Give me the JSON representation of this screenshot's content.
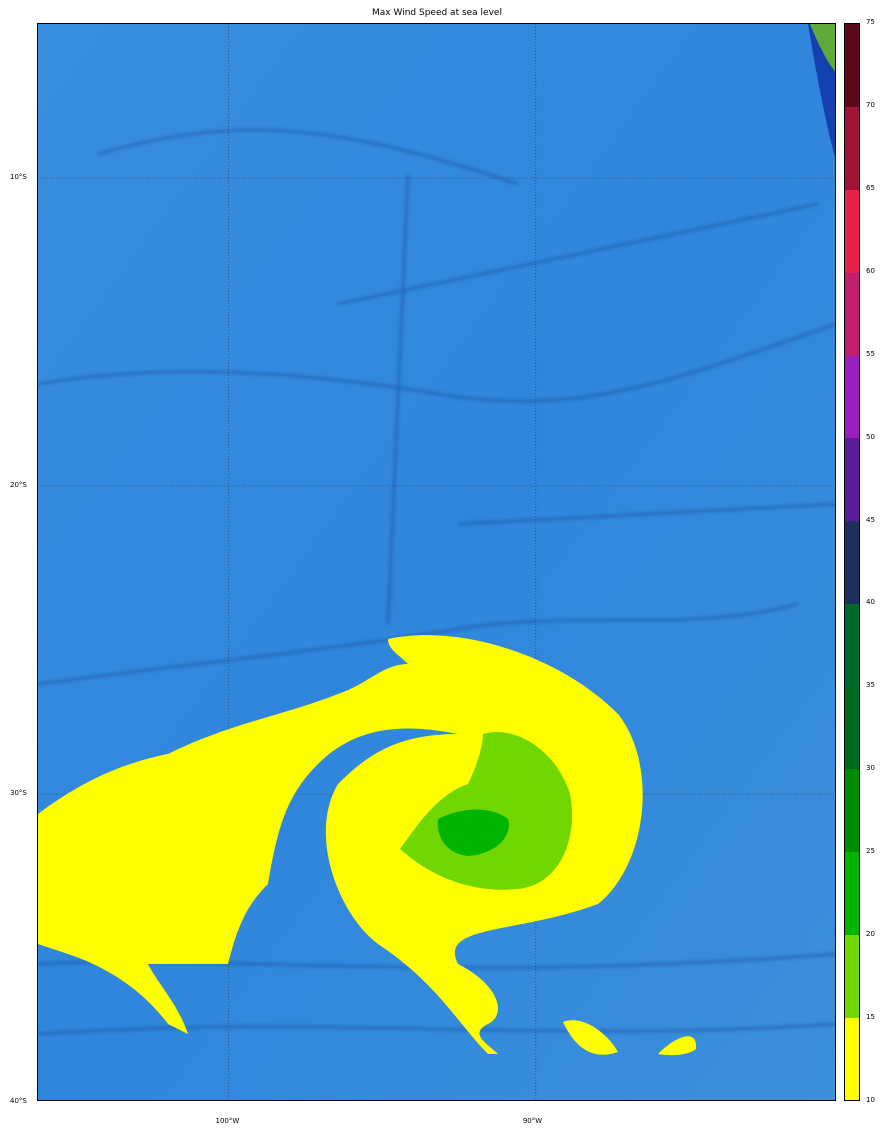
{
  "title": "Max Wind Speed at sea level",
  "map": {
    "lat_range": [
      -40,
      -5
    ],
    "lon_range": [
      -106.2,
      -80.2
    ],
    "lat_labels": [
      {
        "lat": -10,
        "text": "10°S"
      },
      {
        "lat": -20,
        "text": "20°S"
      },
      {
        "lat": -30,
        "text": "30°S"
      },
      {
        "lat": -40,
        "text": "40°S"
      }
    ],
    "lon_labels": [
      {
        "lon": -100,
        "text": "100°W"
      },
      {
        "lon": -90,
        "text": "90°W"
      }
    ],
    "grid": true,
    "basemap": "shaded-relief ocean bathymetry",
    "ocean_color": "#2a7fd8",
    "land_color": "#5fa83a"
  },
  "colorbar": {
    "ticks": [
      "10",
      "15",
      "20",
      "25",
      "30",
      "35",
      "40",
      "45",
      "50",
      "55",
      "60",
      "65",
      "70",
      "75"
    ],
    "colors": [
      "#ffff00",
      "#70d800",
      "#00b400",
      "#008c00",
      "#006a22",
      "#006a2a",
      "#1e3060",
      "#5a1e9a",
      "#9a1ebe",
      "#c0206a",
      "#e8204a",
      "#a01436",
      "#5c0a1e"
    ]
  }
}
